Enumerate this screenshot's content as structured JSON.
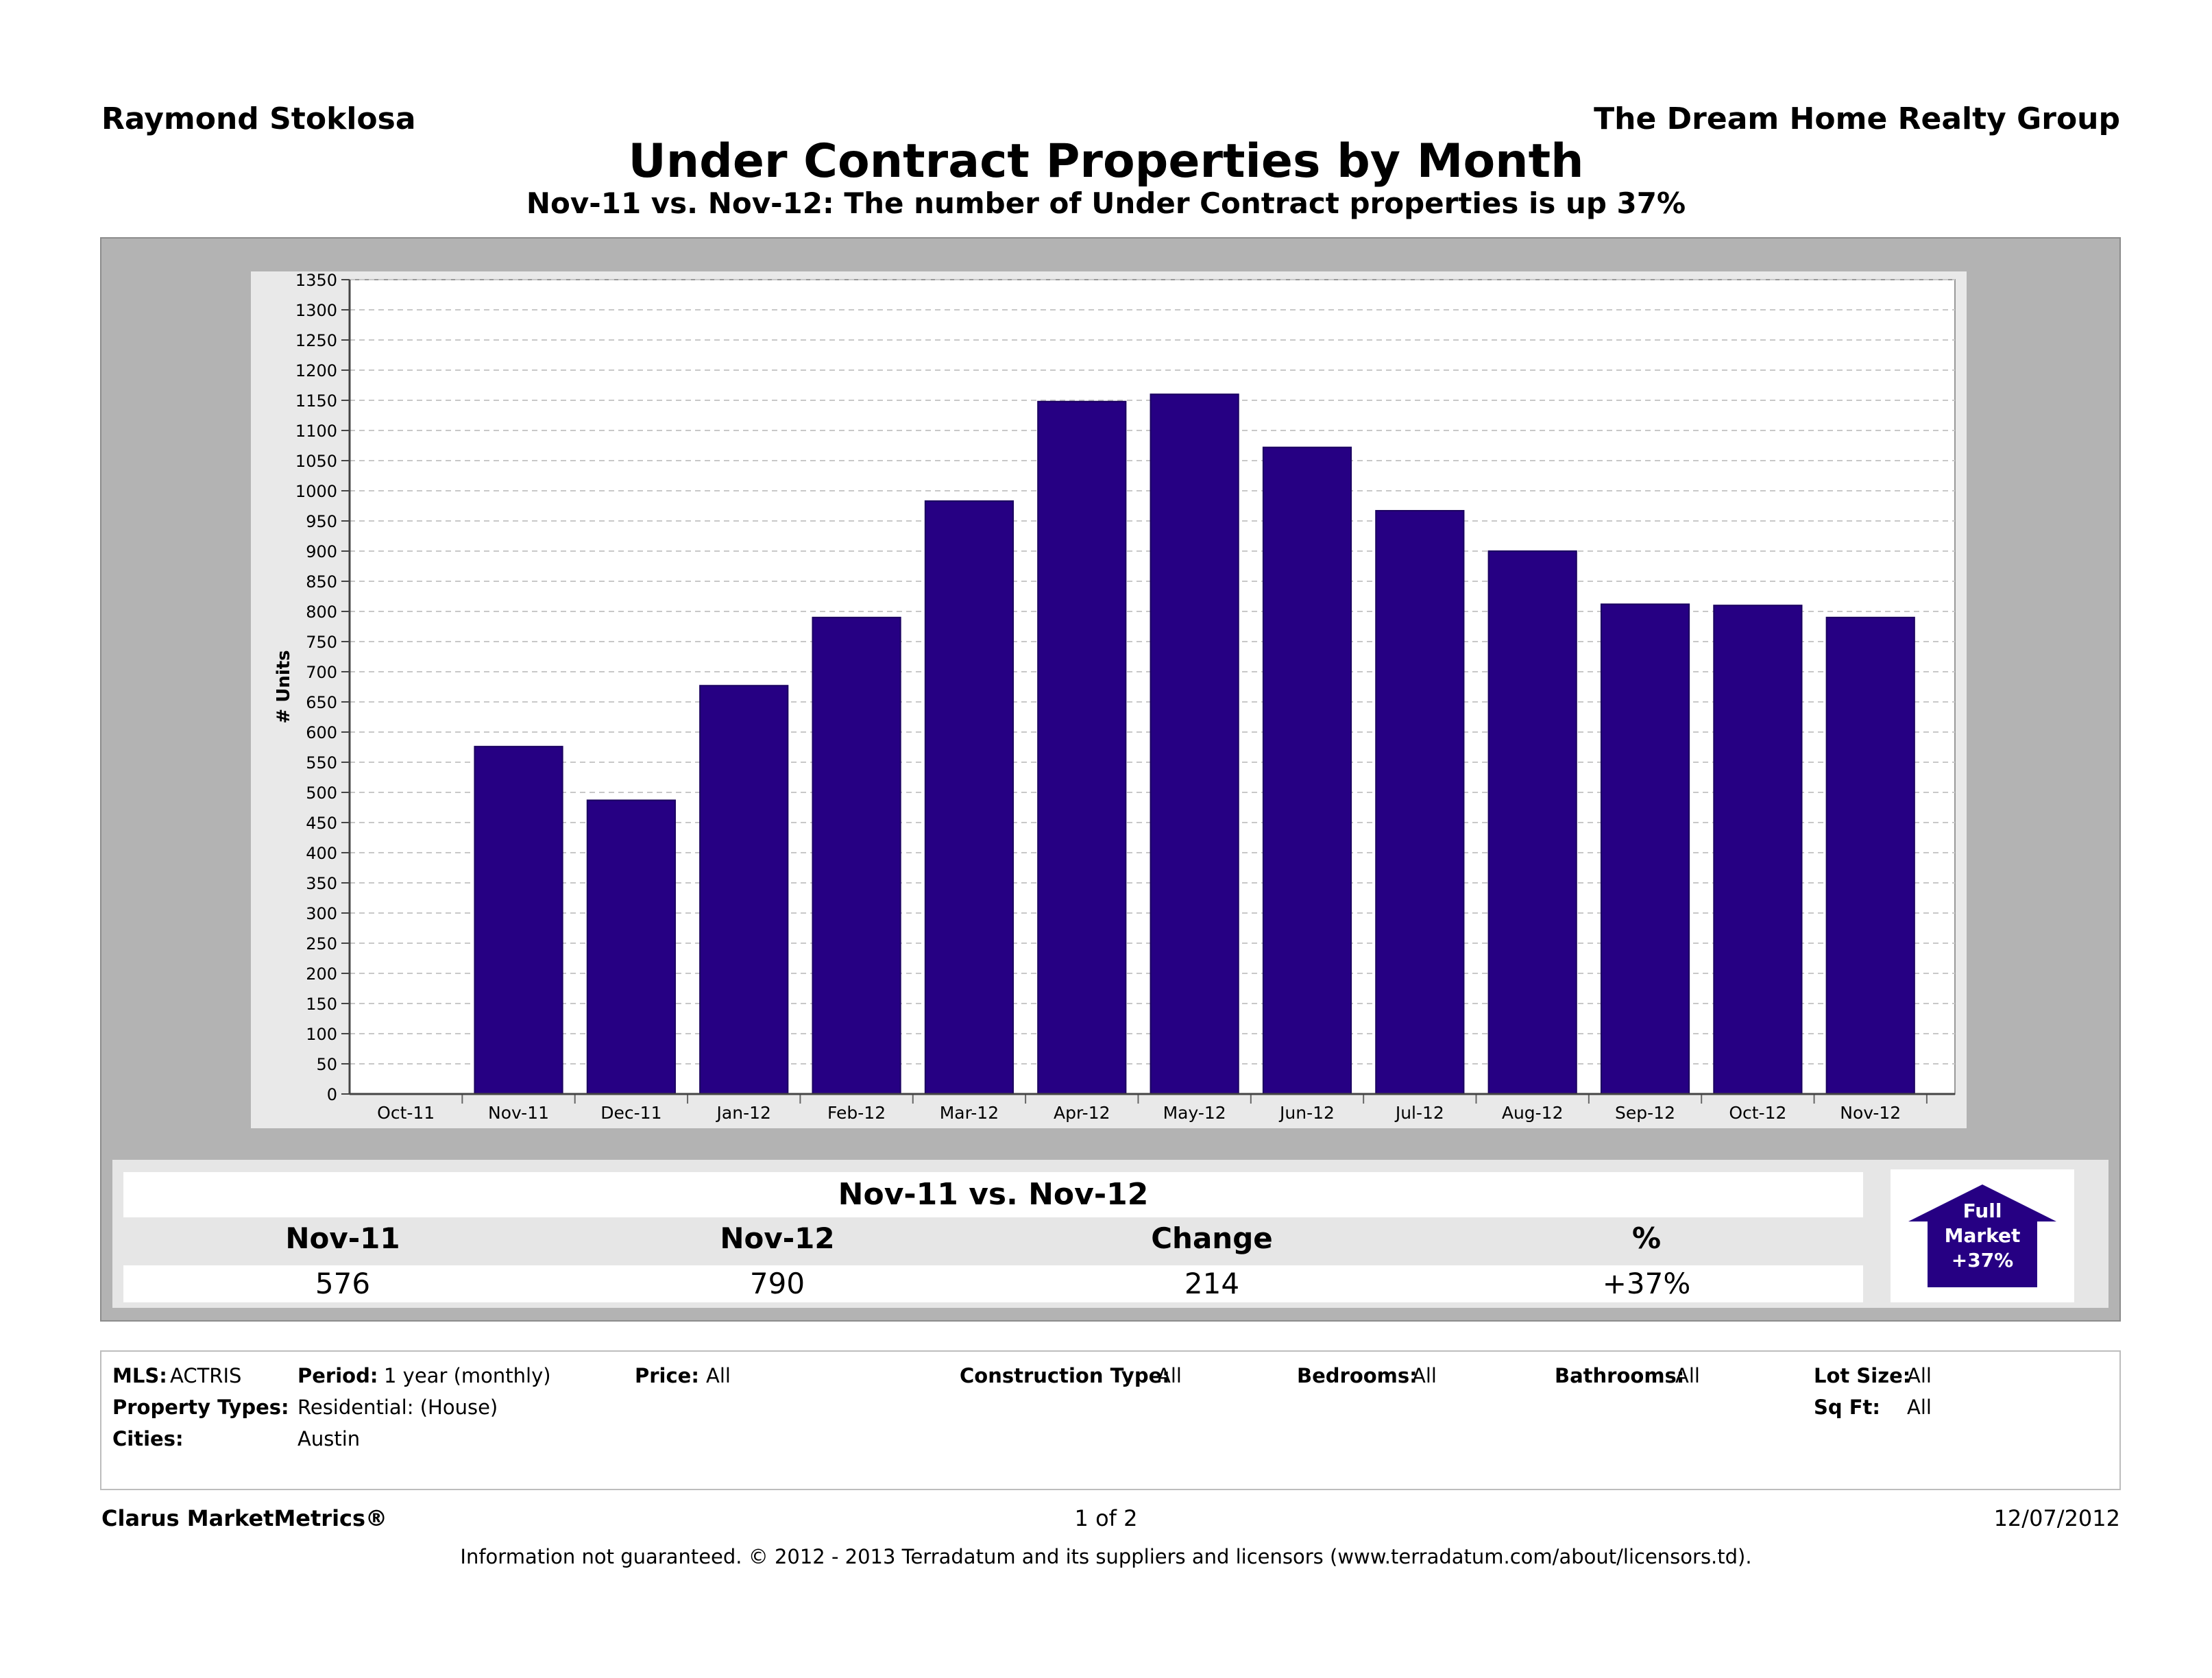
{
  "header": {
    "agent": "Raymond Stoklosa",
    "company": "The Dream Home Realty Group",
    "title": "Under Contract Properties by Month",
    "subtitle": "Nov-11 vs. Nov-12: The number of Under Contract properties is up 37%"
  },
  "chart_data": {
    "type": "bar",
    "categories": [
      "Oct-11",
      "Nov-11",
      "Dec-11",
      "Jan-12",
      "Feb-12",
      "Mar-12",
      "Apr-12",
      "May-12",
      "Jun-12",
      "Jul-12",
      "Aug-12",
      "Sep-12",
      "Oct-12",
      "Nov-12"
    ],
    "values": [
      0,
      576,
      487,
      677,
      790,
      983,
      1148,
      1160,
      1072,
      967,
      900,
      812,
      810,
      790
    ],
    "ylabel": "# Units",
    "ylim": [
      0,
      1350
    ],
    "ytick_step": 50,
    "grid": true,
    "bar_color": "#260083"
  },
  "summary": {
    "title": "Nov-11 vs. Nov-12",
    "headers": [
      "Nov-11",
      "Nov-12",
      "Change",
      "%"
    ],
    "values": [
      "576",
      "790",
      "214",
      "+37%"
    ],
    "badge": {
      "line1": "Full",
      "line2": "Market",
      "line3": "+37%",
      "color": "#260083"
    }
  },
  "filters": {
    "mls_label": "MLS:",
    "mls_value": "ACTRIS",
    "period_label": "Period:",
    "period_value": "1 year (monthly)",
    "price_label": "Price:",
    "price_value": "All",
    "construction_label": "Construction Type:",
    "construction_value": "All",
    "bedrooms_label": "Bedrooms:",
    "bedrooms_value": "All",
    "bathrooms_label": "Bathrooms:",
    "bathrooms_value": "All",
    "lot_label": "Lot Size:",
    "lot_value": "All",
    "ptypes_label": "Property Types:",
    "ptypes_value": "Residential: (House)",
    "sqft_label": "Sq Ft:",
    "sqft_value": "All",
    "cities_label": "Cities:",
    "cities_value": "Austin"
  },
  "footer": {
    "brand": "Clarus MarketMetrics®",
    "page": "1 of 2",
    "date": "12/07/2012",
    "disclaimer": "Information not guaranteed.  © 2012 - 2013 Terradatum and its suppliers and licensors (www.terradatum.com/about/licensors.td)."
  }
}
